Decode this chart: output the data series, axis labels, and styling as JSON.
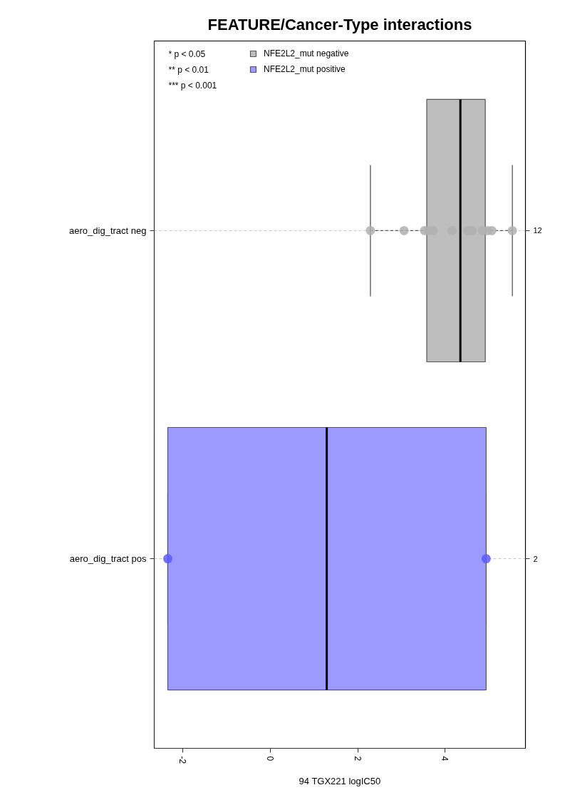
{
  "chart_data": {
    "type": "box",
    "orientation": "horizontal",
    "title": "FEATURE/Cancer-Type interactions",
    "xlabel": "94 TGX221 logIC50",
    "categories": [
      "aero_dig_tract neg",
      "aero_dig_tract pos"
    ],
    "y2_categories": [
      "12",
      "2"
    ],
    "xlim": [
      -2.66,
      5.84
    ],
    "xticks": [
      -2,
      0,
      2,
      4
    ],
    "grid": "y",
    "legend": "top left",
    "marker": "circle",
    "annotations": [
      "* p < 0.05",
      "** p < 0.01",
      "*** p < 0.001"
    ],
    "series": [
      {
        "name": "NFE2L2_mut negative",
        "color": "#bebebe",
        "boxes": [
          {
            "low": 2.29,
            "q1": 3.58,
            "median": 4.35,
            "q3": 4.92,
            "high": 5.54
          },
          null
        ]
      },
      {
        "name": "NFE2L2_mut positive",
        "color": "#9b9bff",
        "boxes": [
          null,
          {
            "low": -2.35,
            "q1": -2.35,
            "median": 1.29,
            "q3": 4.94,
            "high": 4.94
          }
        ]
      },
      {
        "type": "scatter",
        "color": "#b0b0b0",
        "x": [
          "aero_dig_tract neg",
          "aero_dig_tract neg",
          "aero_dig_tract neg",
          "aero_dig_tract neg",
          "aero_dig_tract neg",
          "aero_dig_tract neg",
          "aero_dig_tract neg",
          "aero_dig_tract neg",
          "aero_dig_tract neg",
          "aero_dig_tract neg",
          "aero_dig_tract neg",
          "aero_dig_tract neg"
        ],
        "values": [
          2.29,
          3.06,
          3.53,
          3.62,
          3.73,
          4.16,
          4.52,
          4.62,
          4.86,
          4.97,
          5.07,
          5.54
        ]
      },
      {
        "type": "scatter",
        "color": "#5a5aff",
        "x": [
          "aero_dig_tract pos",
          "aero_dig_tract pos"
        ],
        "values": [
          -2.35,
          4.94
        ]
      }
    ]
  }
}
